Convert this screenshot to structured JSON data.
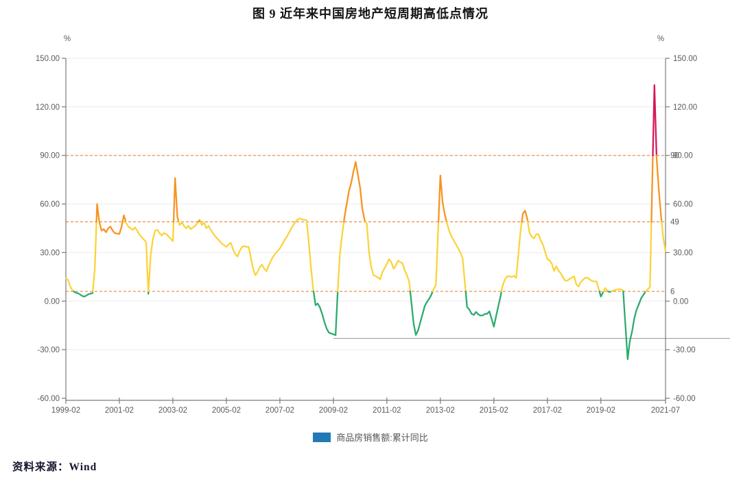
{
  "page": {
    "title": "图 9   近年来中国房地产短周期高低点情况",
    "source_label": "资料来源：Wind"
  },
  "chart_data": {
    "type": "line",
    "title": "图 9 近年来中国房地产短周期高低点情况",
    "xlabel": "",
    "ylabel": "%",
    "unit_label": "%",
    "ylim": [
      -60,
      150
    ],
    "grid": true,
    "legend_position": "bottom",
    "legend": [
      {
        "label": "商品房销售额:累计同比",
        "swatch_color": "#2279b5"
      }
    ],
    "y_axis": {
      "values": [
        150,
        120,
        90,
        60,
        30,
        0,
        -30,
        -60
      ],
      "labels": [
        "150.00",
        "120.00",
        "90.00",
        "60.00",
        "30.00",
        "0.00",
        "-30.00",
        "-60.00"
      ]
    },
    "x_ticks": [
      {
        "month": "1999-02",
        "label": "1999-02"
      },
      {
        "month": "2001-02",
        "label": "2001-02"
      },
      {
        "month": "2003-02",
        "label": "2003-02"
      },
      {
        "month": "2005-02",
        "label": "2005-02"
      },
      {
        "month": "2007-02",
        "label": "2007-02"
      },
      {
        "month": "2009-02",
        "label": "2009-02"
      },
      {
        "month": "2011-02",
        "label": "2011-02"
      },
      {
        "month": "2013-02",
        "label": "2013-02"
      },
      {
        "month": "2015-02",
        "label": "2015-02"
      },
      {
        "month": "2017-02",
        "label": "2017-02"
      },
      {
        "month": "2019-02",
        "label": "2019-02"
      },
      {
        "month": "2021-07",
        "label": "2021-07"
      }
    ],
    "thresholds": [
      {
        "value": 90,
        "label": "90",
        "color": "#f0914d"
      },
      {
        "value": 49,
        "label": "49",
        "color": "#f0914d"
      },
      {
        "value": 6,
        "label": "6",
        "color": "#f0914d"
      }
    ],
    "annotation_line": {
      "value": -23,
      "from": "2009-02",
      "color": "#a8a8a8"
    },
    "color_bands": [
      {
        "max": 6,
        "color": "#2bab6e"
      },
      {
        "max": 49,
        "color": "#fbd33a"
      },
      {
        "max": 90,
        "color": "#f79420"
      },
      {
        "max": 9999,
        "color": "#d6185c"
      }
    ],
    "series": [
      {
        "name": "商品房销售额:累计同比",
        "points": [
          [
            "1999-02",
            14
          ],
          [
            "1999-03",
            13
          ],
          [
            "1999-04",
            9
          ],
          [
            "1999-05",
            6.5
          ],
          [
            "1999-06",
            5.5
          ],
          [
            "1999-07",
            5
          ],
          [
            "1999-08",
            4.5
          ],
          [
            "1999-09",
            3.5
          ],
          [
            "1999-10",
            2.8
          ],
          [
            "1999-11",
            3.2
          ],
          [
            "1999-12",
            4.2
          ],
          [
            "2000-02",
            5
          ],
          [
            "2000-03",
            20
          ],
          [
            "2000-04",
            60
          ],
          [
            "2000-05",
            49
          ],
          [
            "2000-06",
            43.5
          ],
          [
            "2000-07",
            44.5
          ],
          [
            "2000-08",
            42.5
          ],
          [
            "2000-09",
            45
          ],
          [
            "2000-10",
            46
          ],
          [
            "2000-11",
            43.5
          ],
          [
            "2000-12",
            42
          ],
          [
            "2001-02",
            41.5
          ],
          [
            "2001-03",
            46
          ],
          [
            "2001-04",
            53
          ],
          [
            "2001-05",
            48.5
          ],
          [
            "2001-06",
            46
          ],
          [
            "2001-07",
            45
          ],
          [
            "2001-08",
            44
          ],
          [
            "2001-09",
            45.5
          ],
          [
            "2001-10",
            43.5
          ],
          [
            "2001-11",
            41
          ],
          [
            "2001-12",
            39.5
          ],
          [
            "2002-02",
            36.5
          ],
          [
            "2002-03",
            4.5
          ],
          [
            "2002-04",
            28
          ],
          [
            "2002-05",
            38
          ],
          [
            "2002-06",
            43.5
          ],
          [
            "2002-07",
            44
          ],
          [
            "2002-08",
            42
          ],
          [
            "2002-09",
            40.5
          ],
          [
            "2002-10",
            42
          ],
          [
            "2002-11",
            41.5
          ],
          [
            "2002-12",
            40
          ],
          [
            "2003-02",
            37
          ],
          [
            "2003-03",
            76
          ],
          [
            "2003-04",
            52
          ],
          [
            "2003-05",
            47
          ],
          [
            "2003-06",
            48.5
          ],
          [
            "2003-07",
            46.5
          ],
          [
            "2003-08",
            45
          ],
          [
            "2003-09",
            46.5
          ],
          [
            "2003-10",
            44.5
          ],
          [
            "2003-11",
            45.5
          ],
          [
            "2003-12",
            46.5
          ],
          [
            "2004-02",
            50
          ],
          [
            "2004-03",
            47
          ],
          [
            "2004-04",
            48.5
          ],
          [
            "2004-05",
            45
          ],
          [
            "2004-06",
            46.5
          ],
          [
            "2004-07",
            44
          ],
          [
            "2004-08",
            42
          ],
          [
            "2004-09",
            40
          ],
          [
            "2004-10",
            38.5
          ],
          [
            "2004-11",
            37
          ],
          [
            "2004-12",
            35.5
          ],
          [
            "2005-02",
            33.5
          ],
          [
            "2005-03",
            35
          ],
          [
            "2005-04",
            36
          ],
          [
            "2005-05",
            32
          ],
          [
            "2005-06",
            29
          ],
          [
            "2005-07",
            27.5
          ],
          [
            "2005-08",
            31
          ],
          [
            "2005-09",
            33.5
          ],
          [
            "2005-10",
            34
          ],
          [
            "2005-11",
            33.5
          ],
          [
            "2005-12",
            33.5
          ],
          [
            "2006-02",
            20
          ],
          [
            "2006-03",
            16
          ],
          [
            "2006-04",
            18
          ],
          [
            "2006-05",
            21
          ],
          [
            "2006-06",
            22.5
          ],
          [
            "2006-07",
            20
          ],
          [
            "2006-08",
            18.5
          ],
          [
            "2006-09",
            22
          ],
          [
            "2006-10",
            25
          ],
          [
            "2006-11",
            27.5
          ],
          [
            "2006-12",
            29.5
          ],
          [
            "2007-02",
            32.5
          ],
          [
            "2007-03",
            35
          ],
          [
            "2007-04",
            37.5
          ],
          [
            "2007-05",
            39.5
          ],
          [
            "2007-06",
            42
          ],
          [
            "2007-07",
            44.5
          ],
          [
            "2007-08",
            47
          ],
          [
            "2007-09",
            49
          ],
          [
            "2007-10",
            50.5
          ],
          [
            "2007-11",
            51
          ],
          [
            "2007-12",
            50.5
          ],
          [
            "2008-02",
            50
          ],
          [
            "2008-03",
            36
          ],
          [
            "2008-04",
            20
          ],
          [
            "2008-05",
            7
          ],
          [
            "2008-06",
            -2.5
          ],
          [
            "2008-07",
            -1.5
          ],
          [
            "2008-08",
            -4
          ],
          [
            "2008-09",
            -8
          ],
          [
            "2008-10",
            -13
          ],
          [
            "2008-11",
            -17
          ],
          [
            "2008-12",
            -19.5
          ],
          [
            "2009-02",
            -20.5
          ],
          [
            "2009-03",
            -21
          ],
          [
            "2009-04",
            8
          ],
          [
            "2009-05",
            30
          ],
          [
            "2009-06",
            42
          ],
          [
            "2009-07",
            52
          ],
          [
            "2009-08",
            60
          ],
          [
            "2009-09",
            68
          ],
          [
            "2009-10",
            73
          ],
          [
            "2009-11",
            80
          ],
          [
            "2009-12",
            86
          ],
          [
            "2010-02",
            70
          ],
          [
            "2010-03",
            57
          ],
          [
            "2010-04",
            50
          ],
          [
            "2010-05",
            48
          ],
          [
            "2010-06",
            30
          ],
          [
            "2010-07",
            21
          ],
          [
            "2010-08",
            16
          ],
          [
            "2010-09",
            15.5
          ],
          [
            "2010-10",
            14.5
          ],
          [
            "2010-11",
            13.5
          ],
          [
            "2010-12",
            18
          ],
          [
            "2011-02",
            23
          ],
          [
            "2011-03",
            26
          ],
          [
            "2011-04",
            24
          ],
          [
            "2011-05",
            20
          ],
          [
            "2011-06",
            22
          ],
          [
            "2011-07",
            25
          ],
          [
            "2011-08",
            24
          ],
          [
            "2011-09",
            23.5
          ],
          [
            "2011-10",
            19
          ],
          [
            "2011-11",
            16
          ],
          [
            "2011-12",
            12
          ],
          [
            "2012-02",
            -14
          ],
          [
            "2012-03",
            -20.9
          ],
          [
            "2012-04",
            -18
          ],
          [
            "2012-05",
            -13
          ],
          [
            "2012-06",
            -8
          ],
          [
            "2012-07",
            -3
          ],
          [
            "2012-08",
            -0.5
          ],
          [
            "2012-09",
            1.5
          ],
          [
            "2012-10",
            4
          ],
          [
            "2012-11",
            7.5
          ],
          [
            "2012-12",
            10
          ],
          [
            "2013-02",
            77.6
          ],
          [
            "2013-03",
            61
          ],
          [
            "2013-04",
            53.5
          ],
          [
            "2013-05",
            48
          ],
          [
            "2013-06",
            43.2
          ],
          [
            "2013-07",
            40
          ],
          [
            "2013-08",
            37.5
          ],
          [
            "2013-09",
            35
          ],
          [
            "2013-10",
            32.5
          ],
          [
            "2013-11",
            30
          ],
          [
            "2013-12",
            26.3
          ],
          [
            "2014-02",
            -3.7
          ],
          [
            "2014-03",
            -5.2
          ],
          [
            "2014-04",
            -7.8
          ],
          [
            "2014-05",
            -8.5
          ],
          [
            "2014-06",
            -6.7
          ],
          [
            "2014-07",
            -8.2
          ],
          [
            "2014-08",
            -8.9
          ],
          [
            "2014-09",
            -8.8
          ],
          [
            "2014-10",
            -7.9
          ],
          [
            "2014-11",
            -7.8
          ],
          [
            "2014-12",
            -6.3
          ],
          [
            "2015-02",
            -15.8
          ],
          [
            "2015-03",
            -9.2
          ],
          [
            "2015-04",
            -3.1
          ],
          [
            "2015-05",
            3.1
          ],
          [
            "2015-06",
            10
          ],
          [
            "2015-07",
            13.4
          ],
          [
            "2015-08",
            15.3
          ],
          [
            "2015-09",
            15.3
          ],
          [
            "2015-10",
            14.9
          ],
          [
            "2015-11",
            15.6
          ],
          [
            "2015-12",
            14.4
          ],
          [
            "2016-02",
            43.6
          ],
          [
            "2016-03",
            54.1
          ],
          [
            "2016-04",
            55.9
          ],
          [
            "2016-05",
            50.7
          ],
          [
            "2016-06",
            42.1
          ],
          [
            "2016-07",
            39.8
          ],
          [
            "2016-08",
            38.7
          ],
          [
            "2016-09",
            41.3
          ],
          [
            "2016-10",
            41.2
          ],
          [
            "2016-11",
            37.5
          ],
          [
            "2016-12",
            34.8
          ],
          [
            "2017-02",
            26
          ],
          [
            "2017-03",
            25.1
          ],
          [
            "2017-04",
            23.1
          ],
          [
            "2017-05",
            18.6
          ],
          [
            "2017-06",
            21.5
          ],
          [
            "2017-07",
            18.9
          ],
          [
            "2017-08",
            17.2
          ],
          [
            "2017-09",
            14.6
          ],
          [
            "2017-10",
            12.6
          ],
          [
            "2017-11",
            12.7
          ],
          [
            "2017-12",
            13.7
          ],
          [
            "2018-02",
            15.3
          ],
          [
            "2018-03",
            10.4
          ],
          [
            "2018-04",
            9
          ],
          [
            "2018-05",
            11.8
          ],
          [
            "2018-06",
            13.2
          ],
          [
            "2018-07",
            14.4
          ],
          [
            "2018-08",
            14.5
          ],
          [
            "2018-09",
            13.3
          ],
          [
            "2018-10",
            12.5
          ],
          [
            "2018-11",
            12.1
          ],
          [
            "2018-12",
            12.2
          ],
          [
            "2019-02",
            2.8
          ],
          [
            "2019-03",
            5.6
          ],
          [
            "2019-04",
            8.1
          ],
          [
            "2019-05",
            6.1
          ],
          [
            "2019-06",
            5.6
          ],
          [
            "2019-07",
            6.2
          ],
          [
            "2019-08",
            6.7
          ],
          [
            "2019-09",
            7.1
          ],
          [
            "2019-10",
            7.3
          ],
          [
            "2019-11",
            7.3
          ],
          [
            "2019-12",
            6.5
          ],
          [
            "2020-02",
            -35.9
          ],
          [
            "2020-03",
            -24.7
          ],
          [
            "2020-04",
            -18.6
          ],
          [
            "2020-05",
            -10.6
          ],
          [
            "2020-06",
            -5.4
          ],
          [
            "2020-07",
            -2.1
          ],
          [
            "2020-08",
            1.6
          ],
          [
            "2020-09",
            3.7
          ],
          [
            "2020-10",
            5.8
          ],
          [
            "2020-11",
            7.2
          ],
          [
            "2020-12",
            8.7
          ],
          [
            "2021-02",
            133.4
          ],
          [
            "2021-03",
            88.5
          ],
          [
            "2021-04",
            68.2
          ],
          [
            "2021-05",
            52.4
          ],
          [
            "2021-06",
            38.9
          ],
          [
            "2021-07",
            30.7
          ]
        ]
      }
    ]
  }
}
